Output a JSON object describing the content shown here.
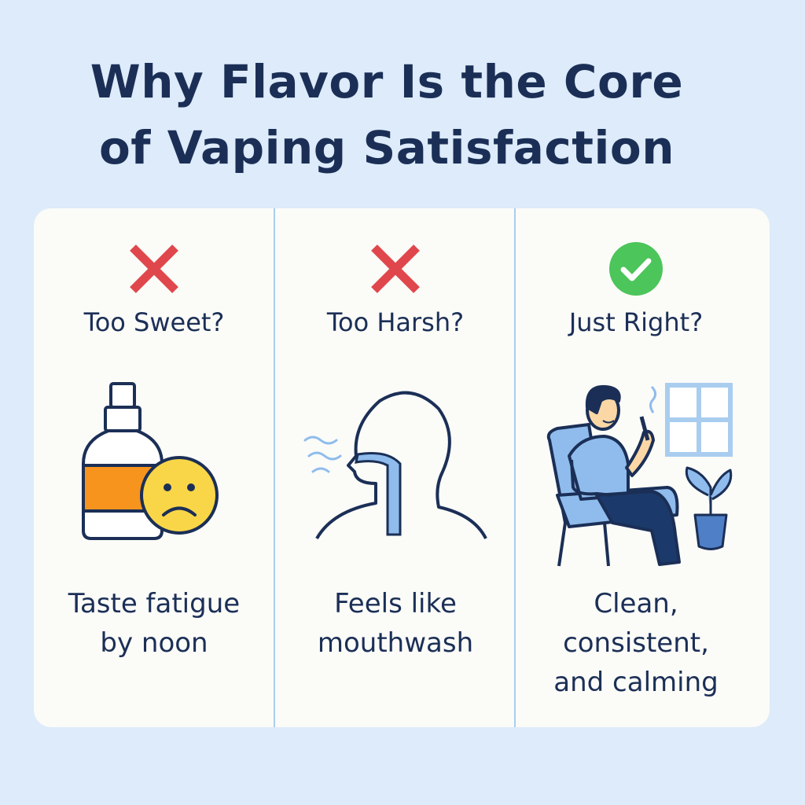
{
  "title": {
    "line1": "Why Flavor Is the Core",
    "line2": "of Vaping Satisfaction"
  },
  "colors": {
    "background": "#ddebfa",
    "card": "#fbfbf8",
    "text": "#1b2f56",
    "cross": "#e0474c",
    "check": "#4cc55a",
    "accent_blue": "#8fbcec",
    "orange": "#f7941d",
    "smiley": "#f9d648"
  },
  "columns": [
    {
      "status_icon": "cross-icon",
      "heading": "Too Sweet?",
      "illustration": "bottle-sad-face",
      "caption_lines": [
        "Taste fatigue",
        "by noon"
      ]
    },
    {
      "status_icon": "cross-icon",
      "heading": "Too Harsh?",
      "illustration": "head-throat-profile",
      "caption_lines": [
        "Feels like",
        "mouthwash"
      ]
    },
    {
      "status_icon": "check-circle-icon",
      "heading": "Just Right?",
      "illustration": "man-relaxing-in-chair",
      "caption_lines": [
        "Clean,",
        "consistent,",
        "and calming"
      ]
    }
  ]
}
